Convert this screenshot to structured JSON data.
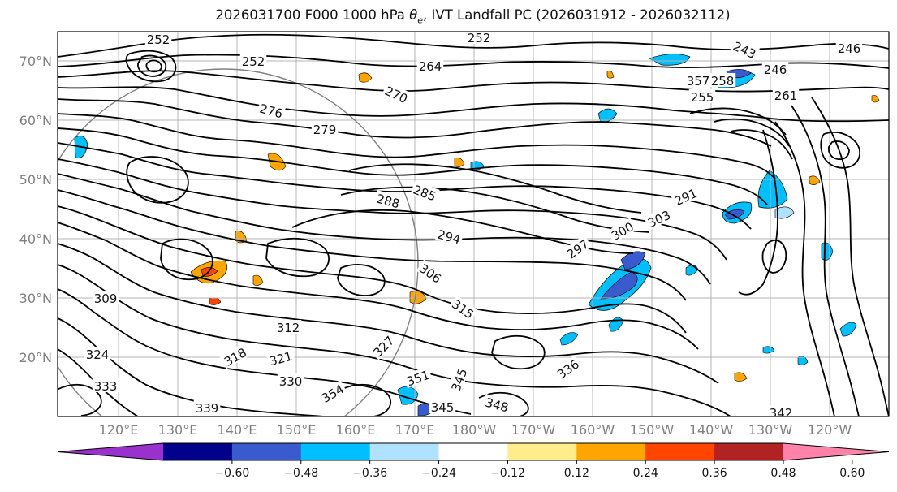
{
  "title": {
    "prefix": "2026031700 F000 1000 hPa ",
    "theta": "θ",
    "theta_sub": "e",
    "suffix": ", IVT Landfall PC (2026031912 - 2026032112)"
  },
  "latitude_labels": [
    "70°N",
    "60°N",
    "50°N",
    "40°N",
    "30°N",
    "20°N"
  ],
  "longitude_labels": [
    "120°E",
    "130°E",
    "140°E",
    "150°E",
    "160°E",
    "170°E",
    "180°W",
    "170°W",
    "160°W",
    "150°W",
    "140°W",
    "130°W",
    "120°W"
  ],
  "contour_labels": [
    "252",
    "252",
    "252",
    "243",
    "246",
    "246",
    "264",
    "270",
    "276",
    "279",
    "255",
    "258",
    "261",
    "288",
    "285",
    "294",
    "291",
    "297",
    "300",
    "303",
    "306",
    "309",
    "312",
    "315",
    "318",
    "321",
    "324",
    "327",
    "330",
    "333",
    "336",
    "339",
    "342",
    "345",
    "345",
    "348",
    "351",
    "354",
    "357"
  ],
  "colorbar": {
    "ticks": [
      "−0.60",
      "−0.48",
      "−0.36",
      "−0.24",
      "−0.12",
      "0.12",
      "0.24",
      "0.36",
      "0.48",
      "0.60"
    ],
    "colors": [
      "#9932cc",
      "#00008b",
      "#3a5bcd",
      "#00bfff",
      "#b0e2ff",
      "#ffffff",
      "#ffec8b",
      "#ffa500",
      "#ff4500",
      "#b22222",
      "#ff82ab"
    ]
  },
  "colors": {
    "contour": "#000000",
    "grid": "#b4b4b4",
    "tick_label": "#808080",
    "circle": "#808080"
  }
}
